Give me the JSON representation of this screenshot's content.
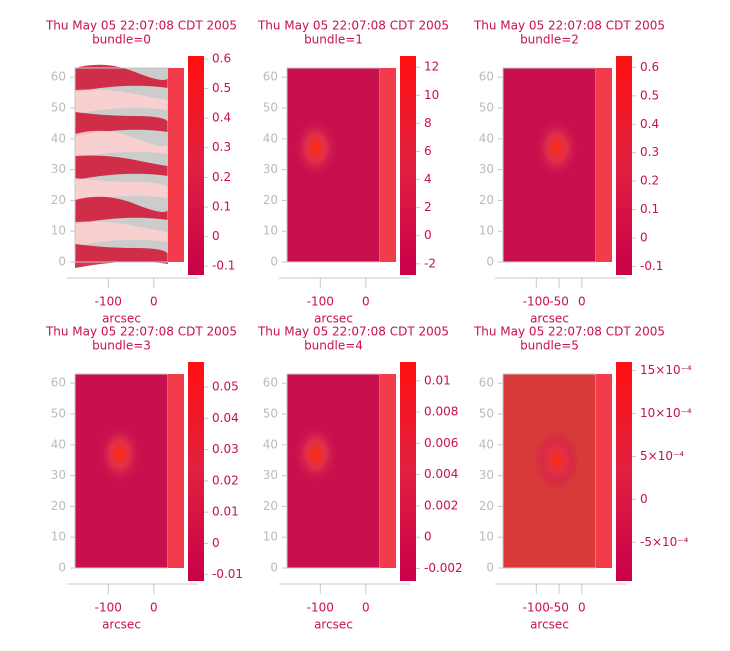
{
  "chart_data": [
    {
      "type": "heatmap",
      "title": "Thu May 05 22:07:08 CDT 2005",
      "subtitle": "bundle=0",
      "xlabel": "arcsec",
      "xlim": [
        -173,
        31
      ],
      "ylim": [
        0,
        63
      ],
      "xticks": [
        -100,
        0
      ],
      "yticks": [
        0,
        10,
        20,
        30,
        40,
        50,
        60
      ],
      "clim": [
        -0.13,
        0.61
      ],
      "cticks": [
        -0.1,
        0.0,
        0.1,
        0.2,
        0.3,
        0.4,
        0.5,
        0.6
      ]
    },
    {
      "type": "heatmap",
      "title": "Thu May 05 22:07:08 CDT 2005",
      "subtitle": "bundle=1",
      "xlabel": "arcsec",
      "xlim": [
        -173,
        31
      ],
      "ylim": [
        0,
        63
      ],
      "xticks": [
        -100,
        0
      ],
      "yticks": [
        0,
        10,
        20,
        30,
        40,
        50,
        60
      ],
      "clim": [
        -2.8,
        12.8
      ],
      "cticks": [
        -2,
        0,
        2,
        4,
        6,
        8,
        10,
        12
      ]
    },
    {
      "type": "heatmap",
      "title": "Thu May 05 22:07:08 CDT 2005",
      "subtitle": "bundle=2",
      "xlabel": "arcsec",
      "xlim": [
        -173,
        31
      ],
      "ylim": [
        0,
        63
      ],
      "xticks": [
        -100,
        -50,
        0
      ],
      "yticks": [
        0,
        10,
        20,
        30,
        40,
        50,
        60
      ],
      "clim": [
        -0.13,
        0.64
      ],
      "cticks": [
        -0.1,
        0.0,
        0.1,
        0.2,
        0.3,
        0.4,
        0.5,
        0.6
      ]
    },
    {
      "type": "heatmap",
      "title": "Thu May 05 22:07:08 CDT 2005",
      "subtitle": "bundle=3",
      "xlabel": "arcsec",
      "xlim": [
        -173,
        31
      ],
      "ylim": [
        0,
        63
      ],
      "xticks": [
        -100,
        0
      ],
      "yticks": [
        0,
        10,
        20,
        30,
        40,
        50,
        60
      ],
      "clim": [
        -0.012,
        0.058
      ],
      "cticks": [
        -0.01,
        0.0,
        0.01,
        0.02,
        0.03,
        0.04,
        0.05
      ]
    },
    {
      "type": "heatmap",
      "title": "Thu May 05 22:07:08 CDT 2005",
      "subtitle": "bundle=4",
      "xlabel": "arcsec",
      "xlim": [
        -173,
        31
      ],
      "ylim": [
        0,
        63
      ],
      "xticks": [
        -100,
        0
      ],
      "yticks": [
        0,
        10,
        20,
        30,
        40,
        50,
        60
      ],
      "clim": [
        -0.0028,
        0.0112
      ],
      "cticks": [
        -0.002,
        0.0,
        0.002,
        0.004,
        0.006,
        0.008,
        0.01
      ]
    },
    {
      "type": "heatmap",
      "title": "Thu May 05 22:07:08 CDT 2005",
      "subtitle": "bundle=5",
      "xlabel": "arcsec",
      "xlim": [
        -173,
        31
      ],
      "ylim": [
        0,
        63
      ],
      "xticks": [
        -100,
        -50,
        0
      ],
      "yticks": [
        0,
        10,
        20,
        30,
        40,
        50,
        60
      ],
      "clim": [
        -0.00095,
        0.0016
      ],
      "cticks": [
        {
          "value": -0.0005,
          "label": "-5×10⁻⁴"
        },
        0,
        {
          "value": 0.0005,
          "label": "5×10⁻⁴"
        },
        {
          "value": 0.001,
          "label": "10×10⁻⁴"
        },
        {
          "value": 0.0015,
          "label": "15×10⁻⁴"
        }
      ]
    }
  ]
}
